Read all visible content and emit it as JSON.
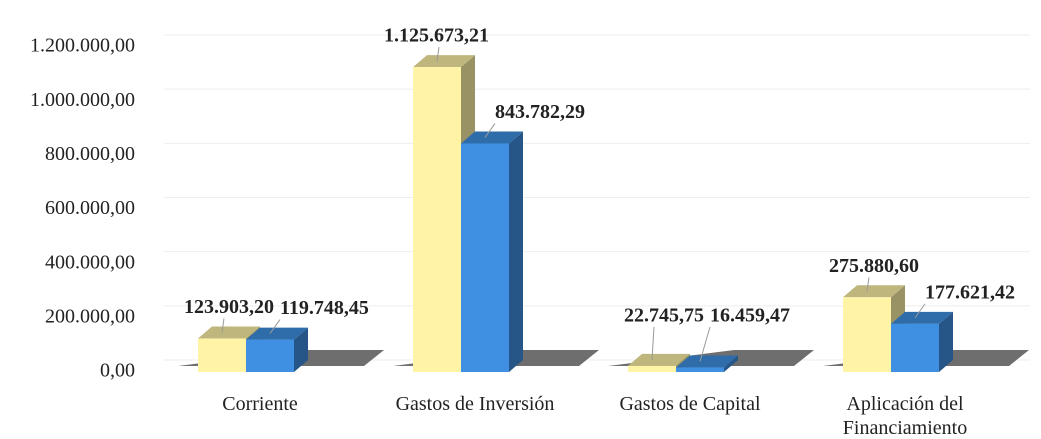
{
  "chart_data": {
    "type": "bar3d",
    "categories": [
      "Corriente",
      "Gastos de Inversión",
      "Gastos de Capital",
      "Aplicación del Financiamiento"
    ],
    "series": [
      {
        "color": "#fff3a6",
        "values": [
          123903.2,
          1125673.21,
          22745.75,
          275880.6
        ],
        "value_labels": [
          "123.903,20",
          "1.125.673,21",
          "22.745,75",
          "275.880,60"
        ]
      },
      {
        "color": "#3f90e2",
        "values": [
          119748.45,
          843782.29,
          16459.47,
          177621.42
        ],
        "value_labels": [
          "119.748,45",
          "843.782,29",
          "16.459,47",
          "177.621,42"
        ]
      }
    ],
    "ylim": [
      0,
      1200000
    ],
    "yticks": [
      {
        "value": 0,
        "label": "0,00"
      },
      {
        "value": 200000,
        "label": "200.000,00"
      },
      {
        "value": 400000,
        "label": "400.000,00"
      },
      {
        "value": 600000,
        "label": "600.000,00"
      },
      {
        "value": 800000,
        "label": "800.000,00"
      },
      {
        "value": 1000000,
        "label": "1.000.000,00"
      },
      {
        "value": 1200000,
        "label": "1.200.000,00"
      }
    ],
    "grid": true
  }
}
